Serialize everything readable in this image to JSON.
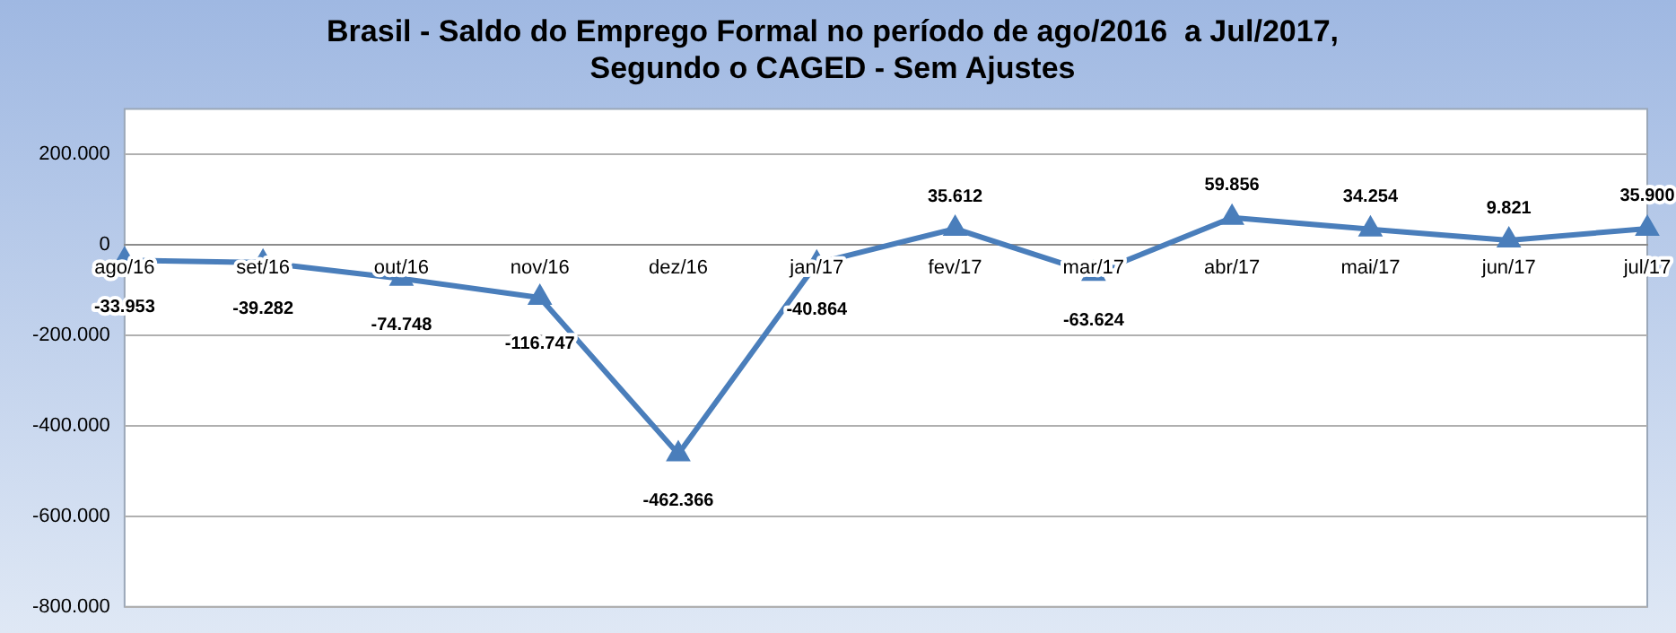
{
  "chart_data": {
    "type": "line",
    "title": [
      "Brasil - Saldo do Emprego Formal no período de ago/2016  a Jul/2017,",
      "Segundo o CAGED - Sem Ajustes"
    ],
    "categories": [
      "ago/16",
      "set/16",
      "out/16",
      "nov/16",
      "dez/16",
      "jan/17",
      "fev/17",
      "mar/17",
      "abr/17",
      "mai/17",
      "jun/17",
      "jul/17"
    ],
    "series": [
      {
        "color": "#4a7ebb",
        "values": [
          -33953,
          -39282,
          -74748,
          -116747,
          -462366,
          -40864,
          35612,
          -63624,
          59856,
          34254,
          9821,
          35900
        ],
        "value_labels": [
          "-33.953",
          "-39.282",
          "-74.748",
          "-116.747",
          "-462.366",
          "-40.864",
          "35.612",
          "-63.624",
          "59.856",
          "34.254",
          "9.821",
          "35.900"
        ]
      }
    ],
    "ylim": [
      -800000,
      300000
    ],
    "yticks": [
      {
        "value": -800000,
        "label": "-800.000"
      },
      {
        "value": -600000,
        "label": "-600.000"
      },
      {
        "value": -400000,
        "label": "-400.000"
      },
      {
        "value": -200000,
        "label": "-200.000"
      },
      0,
      {
        "value": 200000,
        "label": "200.000"
      }
    ],
    "grid": "y",
    "marker": "triangle",
    "line_style": "solid",
    "legend": false
  }
}
